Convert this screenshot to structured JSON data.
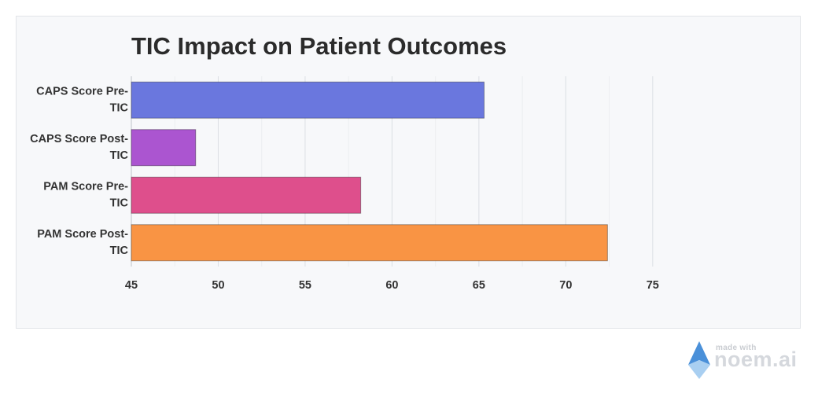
{
  "chart_data": {
    "type": "bar",
    "orientation": "horizontal",
    "title": "TIC Impact on Patient Outcomes",
    "categories": [
      [
        "CAPS Score Pre-",
        "TIC"
      ],
      [
        "CAPS Score Post-",
        "TIC"
      ],
      [
        "PAM Score Pre-",
        "TIC"
      ],
      [
        "PAM Score Post-",
        "TIC"
      ]
    ],
    "values": [
      65.3,
      48.7,
      58.2,
      72.4
    ],
    "colors": [
      "#6a77de",
      "#ab55d0",
      "#de4f8c",
      "#f99444"
    ],
    "xlim": [
      45,
      77
    ],
    "xticks": [
      45,
      50,
      55,
      60,
      65,
      70,
      75
    ],
    "grid": true
  },
  "watermark": {
    "small": "made with",
    "big": "noem.ai"
  }
}
